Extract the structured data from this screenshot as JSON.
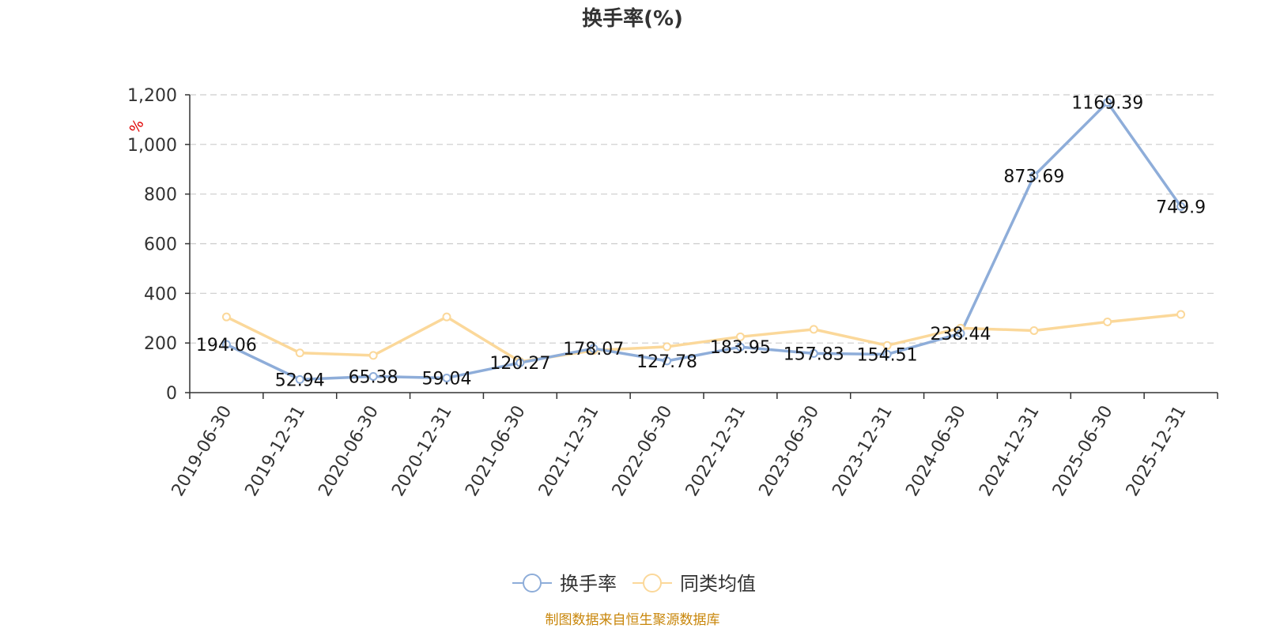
{
  "chart_data": {
    "type": "line",
    "title": "换手率(%)",
    "ylabel": "%",
    "categories": [
      "2019-06-30",
      "2019-12-31",
      "2020-06-30",
      "2020-12-31",
      "2021-06-30",
      "2021-12-31",
      "2022-06-30",
      "2022-12-31",
      "2023-06-30",
      "2023-12-31",
      "2024-06-30",
      "2024-12-31",
      "2025-06-30",
      "2025-12-31"
    ],
    "ylim": [
      0,
      1200
    ],
    "yticks": [
      "0",
      "200",
      "400",
      "600",
      "800",
      "1,000",
      "1,200"
    ],
    "grid": true,
    "legend_position": "bottom-center",
    "series": [
      {
        "name": "换手率",
        "color": "#8EADD9",
        "values": [
          194.06,
          52.94,
          65.38,
          59.04,
          120.27,
          178.07,
          127.78,
          183.95,
          157.83,
          154.51,
          238.44,
          873.69,
          1169.39,
          749.9
        ],
        "labels": [
          "194.06",
          "52.94",
          "65.38",
          "59.04",
          "120.27",
          "178.07",
          "127.78",
          "183.95",
          "157.83",
          "154.51",
          "238.44",
          "873.69",
          "1169.39",
          "749.9"
        ]
      },
      {
        "name": "同类均值",
        "color": "#FBD89A",
        "values": [
          305,
          160,
          150,
          305,
          125,
          170,
          185,
          225,
          255,
          190,
          260,
          250,
          285,
          315
        ]
      }
    ],
    "source": "制图数据来自恒生聚源数据库"
  }
}
